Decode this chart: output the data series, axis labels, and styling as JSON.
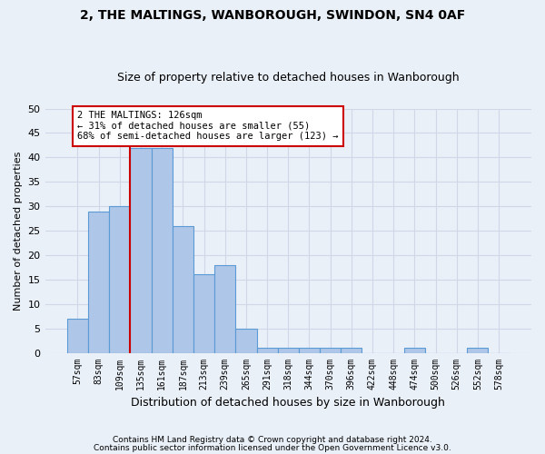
{
  "title": "2, THE MALTINGS, WANBOROUGH, SWINDON, SN4 0AF",
  "subtitle": "Size of property relative to detached houses in Wanborough",
  "xlabel": "Distribution of detached houses by size in Wanborough",
  "ylabel": "Number of detached properties",
  "footnote1": "Contains HM Land Registry data © Crown copyright and database right 2024.",
  "footnote2": "Contains public sector information licensed under the Open Government Licence v3.0.",
  "bar_labels": [
    "57sqm",
    "83sqm",
    "109sqm",
    "135sqm",
    "161sqm",
    "187sqm",
    "213sqm",
    "239sqm",
    "265sqm",
    "291sqm",
    "318sqm",
    "344sqm",
    "370sqm",
    "396sqm",
    "422sqm",
    "448sqm",
    "474sqm",
    "500sqm",
    "526sqm",
    "552sqm",
    "578sqm"
  ],
  "bar_values": [
    7,
    29,
    30,
    42,
    42,
    26,
    16,
    18,
    5,
    1,
    1,
    1,
    1,
    1,
    0,
    0,
    1,
    0,
    0,
    1,
    0
  ],
  "bar_color": "#aec6e8",
  "bar_edge_color": "#5b9bd5",
  "grid_color": "#d0d8e8",
  "background_color": "#eaf0f8",
  "vline_color": "#cc0000",
  "vline_x_index": 2.5,
  "annotation_text": "2 THE MALTINGS: 126sqm\n← 31% of detached houses are smaller (55)\n68% of semi-detached houses are larger (123) →",
  "annotation_box_color": "#ffffff",
  "annotation_box_edge": "#cc0000",
  "ylim": [
    0,
    50
  ],
  "yticks": [
    0,
    5,
    10,
    15,
    20,
    25,
    30,
    35,
    40,
    45,
    50
  ]
}
